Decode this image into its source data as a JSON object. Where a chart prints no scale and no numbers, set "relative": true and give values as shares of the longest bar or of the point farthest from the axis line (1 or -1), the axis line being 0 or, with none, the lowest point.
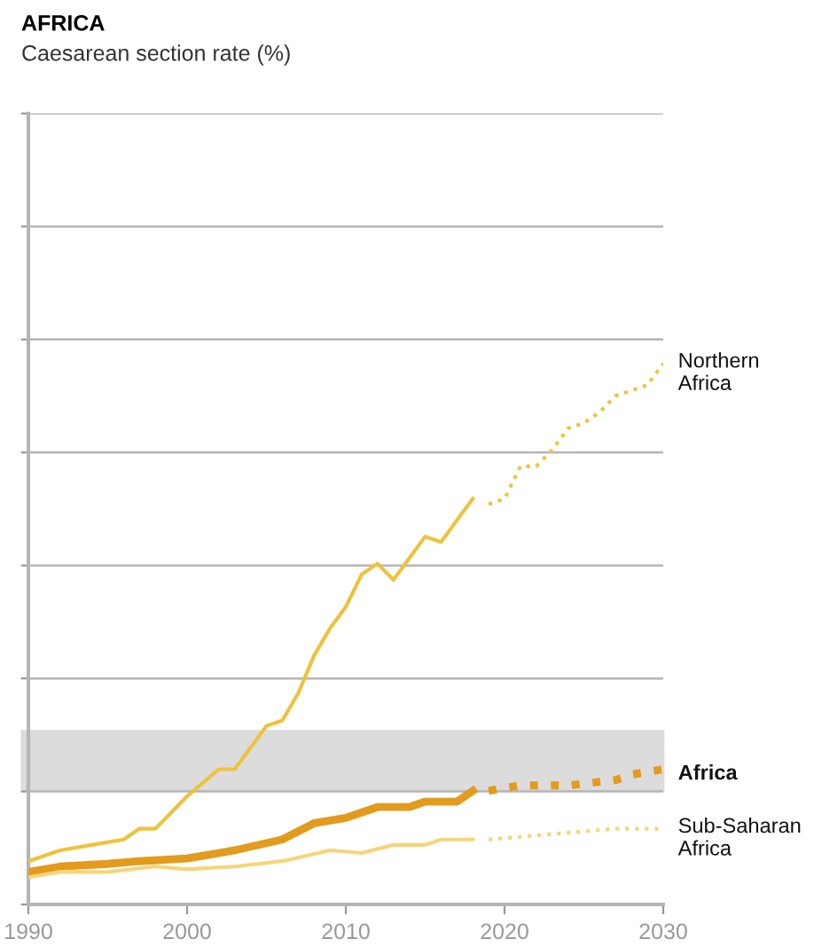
{
  "chart_data": {
    "type": "line",
    "title": "AFRICA",
    "subtitle": "Caesarean section rate (%)",
    "relative": true,
    "xlim": [
      1990,
      2030
    ],
    "xticks": [
      1990,
      2000,
      2010,
      2020,
      2030
    ],
    "grid": "y",
    "legend": false,
    "marker": "none",
    "bands": [
      {
        "axis": "y",
        "from": 0.21,
        "to": 0.32,
        "color": "#dcdcdc"
      }
    ],
    "series": [
      {
        "name": "Northern Africa",
        "color": "#efc23c",
        "line_style": "solid",
        "x": [
          1990,
          1992,
          1994,
          1996,
          1997,
          1998,
          2000,
          2002,
          2003,
          2005,
          2006,
          2007,
          2008,
          2009,
          2010,
          2011,
          2012,
          2013,
          2014,
          2015,
          2016,
          2017,
          2018
        ],
        "values": [
          0.08,
          0.1,
          0.11,
          0.12,
          0.14,
          0.14,
          0.2,
          0.25,
          0.25,
          0.33,
          0.34,
          0.39,
          0.46,
          0.51,
          0.55,
          0.61,
          0.63,
          0.6,
          0.64,
          0.68,
          0.67,
          0.71,
          0.75
        ]
      },
      {
        "color": "#efc23c",
        "line_style": "dotted",
        "x": [
          2019,
          2020,
          2021,
          2022,
          2023,
          2024,
          2025,
          2026,
          2027,
          2029,
          2030
        ],
        "values": [
          0.74,
          0.75,
          0.81,
          0.81,
          0.84,
          0.88,
          0.89,
          0.91,
          0.94,
          0.96,
          1.0
        ]
      },
      {
        "name": "Africa",
        "color": "#e29b1c",
        "line_style": "solid",
        "x": [
          1990,
          1992,
          1995,
          1997,
          2000,
          2003,
          2006,
          2008,
          2010,
          2011,
          2012,
          2014,
          2015,
          2017,
          2018
        ],
        "values": [
          0.06,
          0.07,
          0.075,
          0.08,
          0.085,
          0.1,
          0.12,
          0.15,
          0.16,
          0.17,
          0.18,
          0.18,
          0.19,
          0.19,
          0.21
        ]
      },
      {
        "color": "#e29b1c",
        "line_style": "dotted",
        "x": [
          2019,
          2021,
          2024,
          2027,
          2028,
          2030
        ],
        "values": [
          0.21,
          0.22,
          0.22,
          0.23,
          0.24,
          0.25
        ]
      },
      {
        "name": "Sub-Saharan Africa",
        "color": "#f5d57a",
        "line_style": "solid",
        "x": [
          1990,
          1992,
          1995,
          1998,
          2000,
          2003,
          2006,
          2009,
          2011,
          2013,
          2015,
          2016,
          2017,
          2018
        ],
        "values": [
          0.05,
          0.06,
          0.06,
          0.07,
          0.065,
          0.07,
          0.08,
          0.1,
          0.095,
          0.11,
          0.11,
          0.12,
          0.12,
          0.12
        ]
      },
      {
        "color": "#f5d57a",
        "line_style": "dotted",
        "x": [
          2019,
          2023,
          2027,
          2030
        ],
        "values": [
          0.12,
          0.13,
          0.14,
          0.14
        ]
      }
    ]
  }
}
